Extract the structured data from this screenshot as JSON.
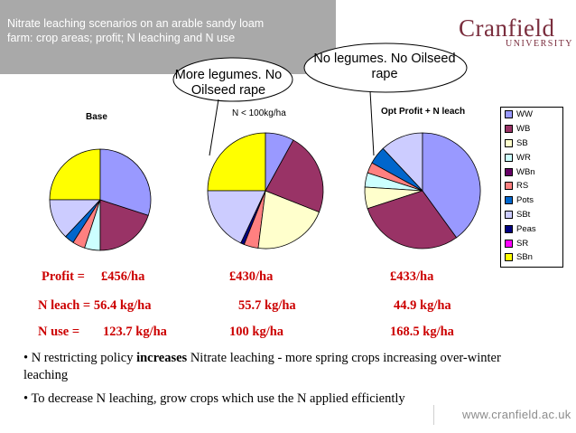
{
  "header": {
    "title": "Nitrate leaching scenarios on an arable sandy loam farm: crop areas; profit; N leaching and N use",
    "logo_main": "Cranfield",
    "logo_sub": "UNIVERSITY"
  },
  "callouts": [
    "More legumes. No Oilseed rape",
    "No legumes. No Oilseed rape"
  ],
  "chart_data": {
    "type": "pie",
    "legend": {
      "placement": "right",
      "entries": [
        "WW",
        "WB",
        "SB",
        "WR",
        "WBn",
        "RS",
        "Pots",
        "SBt",
        "Peas",
        "SR",
        "SBn"
      ]
    },
    "colors": {
      "WW": "#9999ff",
      "WB": "#993366",
      "SB": "#ffffcc",
      "WR": "#ccffff",
      "WBn": "#660066",
      "RS": "#ff8080",
      "Pots": "#0066cc",
      "SBt": "#ccccff",
      "Peas": "#000080",
      "SR": "#ff00ff",
      "SBn": "#ffff00"
    },
    "charts": [
      {
        "title": "Base",
        "slices": [
          {
            "label": "WW",
            "value": 30
          },
          {
            "label": "WB",
            "value": 20
          },
          {
            "label": "WR",
            "value": 5
          },
          {
            "label": "RS",
            "value": 4
          },
          {
            "label": "Pots",
            "value": 3
          },
          {
            "label": "SBt",
            "value": 13
          },
          {
            "label": "SBn",
            "value": 25
          }
        ]
      },
      {
        "title": "N < 100kg/ha",
        "slices": [
          {
            "label": "WW",
            "value": 8
          },
          {
            "label": "WB",
            "value": 23
          },
          {
            "label": "SB",
            "value": 21
          },
          {
            "label": "RS",
            "value": 4
          },
          {
            "label": "Peas",
            "value": 1
          },
          {
            "label": "SBt",
            "value": 18
          },
          {
            "label": "SBn",
            "value": 25
          }
        ]
      },
      {
        "title": "Opt Profit + N leach",
        "slices": [
          {
            "label": "WW",
            "value": 40
          },
          {
            "label": "WB",
            "value": 30
          },
          {
            "label": "SB",
            "value": 6
          },
          {
            "label": "WR",
            "value": 4
          },
          {
            "label": "RS",
            "value": 3
          },
          {
            "label": "Pots",
            "value": 5
          },
          {
            "label": "SBt",
            "value": 12
          }
        ]
      }
    ]
  },
  "stats": {
    "labels": [
      "Profit =",
      "N leach = 56.4 kg/ha",
      "N use ="
    ],
    "rows": [
      {
        "base": "£456/ha",
        "n100": "£430/ha",
        "opt": "£433/ha"
      },
      {
        "base": "",
        "n100": "55.7 kg/ha",
        "opt": "44.9 kg/ha"
      },
      {
        "base": "123.7 kg/ha",
        "n100": "100 kg/ha",
        "opt": "168.5 kg/ha"
      }
    ]
  },
  "bullets": {
    "b1_pre": "• N restricting policy ",
    "b1_bold": "increases",
    "b1_post": " Nitrate leaching - more spring crops increasing over-winter leaching",
    "b2": "• To decrease N leaching, grow crops which use the N applied efficiently"
  },
  "footer": {
    "url": "www.cranfield.ac.uk"
  }
}
